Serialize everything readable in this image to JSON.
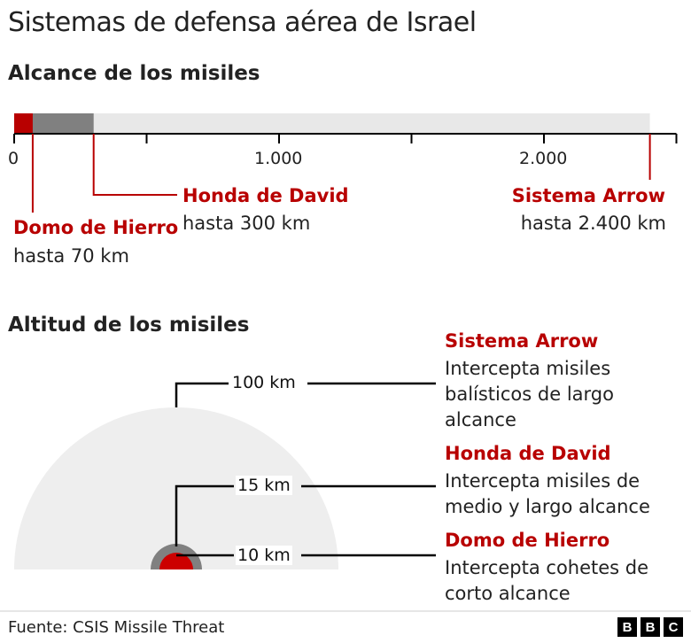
{
  "title": "Sistemas de defensa aérea de Israel",
  "range_section": {
    "heading": "Alcance de los misiles",
    "axis_ticks": [
      {
        "value": 0,
        "label": "0"
      },
      {
        "value": 500,
        "label": ""
      },
      {
        "value": 1000,
        "label": "1.000"
      },
      {
        "value": 1500,
        "label": ""
      },
      {
        "value": 2000,
        "label": "2.000"
      },
      {
        "value": 2500,
        "label": ""
      }
    ],
    "systems": [
      {
        "name": "Domo de Hierro",
        "range_label": "hasta 70 km",
        "range_km": 70,
        "color": "#b80000"
      },
      {
        "name": "Honda de David",
        "range_label": "hasta 300 km",
        "range_km": 300,
        "color": "#808080"
      },
      {
        "name": "Sistema Arrow",
        "range_label": "hasta 2.400 km",
        "range_km": 2400,
        "color": "#e8e8e8"
      }
    ]
  },
  "altitude_section": {
    "heading": "Altitud de los misiles",
    "levels": [
      {
        "altitude_label": "100 km",
        "name": "Sistema Arrow",
        "description": "Intercepta misiles balísticos de largo alcance",
        "color": "#eeeeee"
      },
      {
        "altitude_label": "15 km",
        "name": "Honda de David",
        "description": "Intercepta misiles de medio y largo alcance",
        "color": "#808080"
      },
      {
        "altitude_label": "10 km",
        "name": "Domo de Hierro",
        "description": "Intercepta cohetes de corto alcance",
        "color": "#cc0000"
      }
    ]
  },
  "footer": {
    "source": "Fuente: CSIS Missile Threat",
    "logo": [
      "B",
      "B",
      "C"
    ]
  }
}
